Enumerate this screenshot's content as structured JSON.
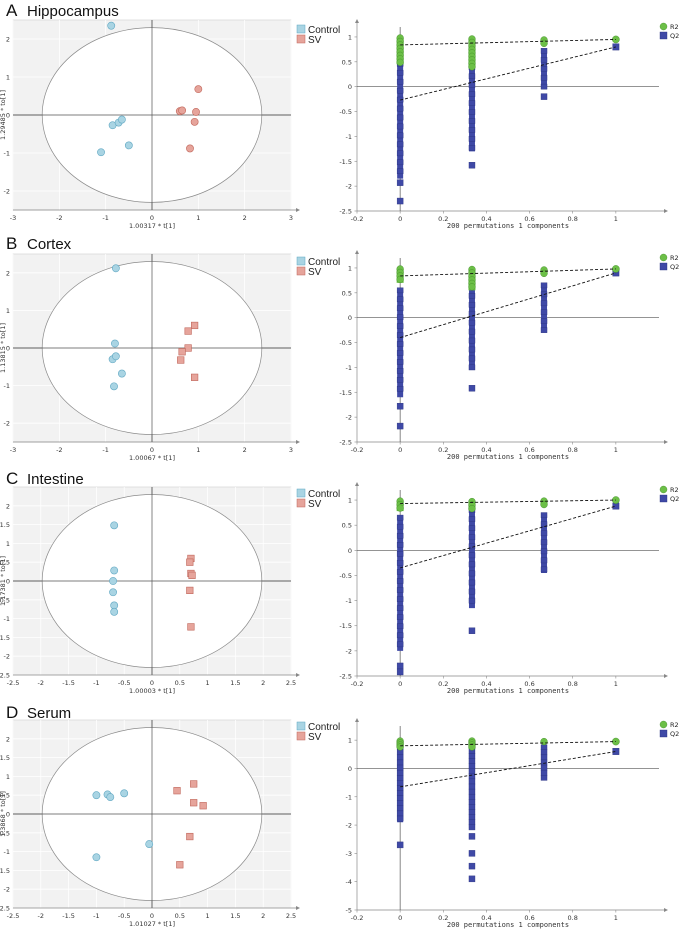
{
  "colors": {
    "control": "#a9d4e3",
    "control_edge": "#5fa7c2",
    "sv": "#e6a49b",
    "sv_edge": "#c0665a",
    "r2": "#6cbf47",
    "r2_edge": "#3e8b26",
    "q2": "#3f49a6",
    "q2_edge": "#2a3380",
    "plot_bg": "#f2f2f2"
  },
  "chart_data": [
    {
      "type": "scatter",
      "panel": "A",
      "title": "Hippocampus",
      "xlabel": "1.00317 * t[1]",
      "ylabel": "1.29485 * to[1]",
      "xlim": [
        -3,
        3
      ],
      "ylim": [
        -2.5,
        2.5
      ],
      "xticks": [
        "-3",
        "-2",
        "-1",
        "0",
        "1",
        "2",
        "3"
      ],
      "yticks": [
        "-2",
        "-1",
        "0",
        "1",
        "2"
      ],
      "legend": [
        "Control",
        "SV"
      ],
      "series": [
        {
          "name": "Control",
          "marker": "circle",
          "points": [
            [
              -0.88,
              2.35
            ],
            [
              -0.85,
              -0.27
            ],
            [
              -0.72,
              -0.2
            ],
            [
              -0.65,
              -0.12
            ],
            [
              -0.5,
              -0.8
            ],
            [
              -1.1,
              -0.98
            ]
          ]
        },
        {
          "name": "SV",
          "marker": "circle",
          "points": [
            [
              0.6,
              0.1
            ],
            [
              0.65,
              0.12
            ],
            [
              1.0,
              0.68
            ],
            [
              0.95,
              0.08
            ],
            [
              0.92,
              -0.18
            ],
            [
              0.82,
              -0.88
            ]
          ]
        }
      ]
    },
    {
      "type": "scatter",
      "panel": "A",
      "subtitle": "permutation",
      "xlabel": "200 permutations 1 components",
      "xlim": [
        -0.2,
        1.2
      ],
      "ylim": [
        -2.5,
        1.2
      ],
      "xticks": [
        "-0.2",
        "0",
        "0.2",
        "0.4",
        "0.6",
        "0.8",
        "1"
      ],
      "yticks": [
        "1",
        "0.5",
        "0",
        "-0.5",
        "-1",
        "-1.5",
        "-2",
        "-2.5"
      ],
      "legend": [
        "R2",
        "Q2"
      ],
      "r2": {
        "line": [
          [
            0,
            0.84
          ],
          [
            1,
            0.95
          ]
        ],
        "columns": [
          {
            "x": 0,
            "min": 0.45,
            "max": 0.98
          },
          {
            "x": 0.333,
            "min": 0.38,
            "max": 0.96
          },
          {
            "x": 0.667,
            "min": 0.85,
            "max": 0.94
          }
        ],
        "final": 0.95
      },
      "q2": {
        "line": [
          [
            0,
            -0.27
          ],
          [
            1,
            0.8
          ]
        ],
        "columns": [
          {
            "x": 0,
            "min": -1.85,
            "max": 0.82,
            "outliers": [
              -1.93,
              -2.3
            ]
          },
          {
            "x": 0.333,
            "min": -1.3,
            "max": 0.75,
            "outliers": [
              -1.58
            ]
          },
          {
            "x": 0.667,
            "min": -0.05,
            "max": 0.72,
            "outliers": [
              -0.2
            ]
          }
        ],
        "final": 0.8
      }
    },
    {
      "type": "scatter",
      "panel": "B",
      "title": "Cortex",
      "xlabel": "1.00067 * t[1]",
      "ylabel": "1.13815 * to[1]",
      "xlim": [
        -3,
        3
      ],
      "ylim": [
        -2.5,
        2.5
      ],
      "xticks": [
        "-3",
        "-2",
        "-1",
        "0",
        "1",
        "2",
        "3"
      ],
      "yticks": [
        "-2",
        "-1",
        "0",
        "1",
        "2"
      ],
      "legend": [
        "Control",
        "SV"
      ],
      "series": [
        {
          "name": "Control",
          "marker": "circle",
          "points": [
            [
              -0.78,
              2.12
            ],
            [
              -0.8,
              0.12
            ],
            [
              -0.85,
              -0.3
            ],
            [
              -0.78,
              -0.22
            ],
            [
              -0.65,
              -0.68
            ],
            [
              -0.82,
              -1.02
            ]
          ]
        },
        {
          "name": "SV",
          "marker": "square",
          "points": [
            [
              0.92,
              0.6
            ],
            [
              0.78,
              0.45
            ],
            [
              0.78,
              0.0
            ],
            [
              0.65,
              -0.1
            ],
            [
              0.62,
              -0.32
            ],
            [
              0.92,
              -0.78
            ]
          ]
        }
      ]
    },
    {
      "type": "scatter",
      "panel": "B",
      "subtitle": "permutation",
      "xlabel": "200 permutations 1 components",
      "xlim": [
        -0.2,
        1.2
      ],
      "ylim": [
        -2.5,
        1.2
      ],
      "xticks": [
        "-0.2",
        "0",
        "0.2",
        "0.4",
        "0.6",
        "0.8",
        "1"
      ],
      "yticks": [
        "1",
        "0.5",
        "0",
        "-0.5",
        "-1",
        "-1.5",
        "-2",
        "-2.5"
      ],
      "legend": [
        "R2",
        "Q2"
      ],
      "r2": {
        "line": [
          [
            0,
            0.84
          ],
          [
            1,
            0.98
          ]
        ],
        "columns": [
          {
            "x": 0,
            "min": 0.7,
            "max": 0.98
          },
          {
            "x": 0.333,
            "min": 0.55,
            "max": 0.97
          },
          {
            "x": 0.667,
            "min": 0.88,
            "max": 0.96
          }
        ],
        "final": 0.98
      },
      "q2": {
        "line": [
          [
            0,
            -0.4
          ],
          [
            1,
            0.9
          ]
        ],
        "columns": [
          {
            "x": 0,
            "min": -1.6,
            "max": 0.55,
            "outliers": [
              -1.78,
              -2.18
            ]
          },
          {
            "x": 0.333,
            "min": -1.05,
            "max": 0.8,
            "outliers": [
              -1.42
            ]
          },
          {
            "x": 0.667,
            "min": -0.25,
            "max": 0.65,
            "outliers": []
          }
        ],
        "final": 0.9
      }
    },
    {
      "type": "scatter",
      "panel": "C",
      "title": "Intestine",
      "xlabel": "1.00003 * t[1]",
      "ylabel": "1.17381 * to[1]",
      "xlim": [
        -2.5,
        2.5
      ],
      "ylim": [
        -2.5,
        2.5
      ],
      "xticks": [
        "-2.5",
        "-2",
        "-1.5",
        "-1",
        "-0.5",
        "0",
        "0.5",
        "1",
        "1.5",
        "2",
        "2.5"
      ],
      "yticks": [
        "-2.5",
        "-2",
        "-1.5",
        "-1",
        "-0.5",
        "0",
        "0.5",
        "1",
        "1.5",
        "2"
      ],
      "legend": [
        "Control",
        "SV"
      ],
      "series": [
        {
          "name": "Control",
          "marker": "circle",
          "points": [
            [
              -0.68,
              1.48
            ],
            [
              -0.68,
              0.28
            ],
            [
              -0.7,
              0.0
            ],
            [
              -0.7,
              -0.3
            ],
            [
              -0.68,
              -0.65
            ],
            [
              -0.68,
              -0.82
            ]
          ]
        },
        {
          "name": "SV",
          "marker": "square",
          "points": [
            [
              0.7,
              0.6
            ],
            [
              0.68,
              0.5
            ],
            [
              0.7,
              0.2
            ],
            [
              0.72,
              0.15
            ],
            [
              0.68,
              -0.25
            ],
            [
              0.7,
              -1.22
            ]
          ]
        }
      ]
    },
    {
      "type": "scatter",
      "panel": "C",
      "subtitle": "permutation",
      "xlabel": "200 permutations 1 components",
      "xlim": [
        -0.2,
        1.2
      ],
      "ylim": [
        -2.5,
        1.2
      ],
      "xticks": [
        "-0.2",
        "0",
        "0.2",
        "0.4",
        "0.6",
        "0.8",
        "1"
      ],
      "yticks": [
        "1",
        "0.5",
        "0",
        "-0.5",
        "-1",
        "-1.5",
        "-2",
        "-2.5"
      ],
      "legend": [
        "R2",
        "Q2"
      ],
      "r2": {
        "line": [
          [
            0,
            0.93
          ],
          [
            1,
            1.0
          ]
        ],
        "columns": [
          {
            "x": 0,
            "min": 0.78,
            "max": 0.98
          },
          {
            "x": 0.333,
            "min": 0.8,
            "max": 0.97
          },
          {
            "x": 0.667,
            "min": 0.9,
            "max": 0.98
          }
        ],
        "final": 1.0
      },
      "q2": {
        "line": [
          [
            0,
            -0.35
          ],
          [
            1,
            0.88
          ]
        ],
        "columns": [
          {
            "x": 0,
            "min": -2.0,
            "max": 0.65,
            "outliers": [
              -2.3,
              -2.42
            ]
          },
          {
            "x": 0.333,
            "min": -1.15,
            "max": 0.8,
            "outliers": [
              -1.6
            ]
          },
          {
            "x": 0.667,
            "min": -0.45,
            "max": 0.7,
            "outliers": []
          }
        ],
        "final": 0.88
      }
    },
    {
      "type": "scatter",
      "panel": "D",
      "title": "Serum",
      "xlabel": "1.01027 * t[1]",
      "ylabel": "1.3868 * to[1]",
      "xlim": [
        -2.5,
        2.5
      ],
      "ylim": [
        -2.5,
        2.5
      ],
      "xticks": [
        "-2.5",
        "-2",
        "-1.5",
        "-1",
        "-0.5",
        "0",
        "0.5",
        "1",
        "1.5",
        "2",
        "2.5"
      ],
      "yticks": [
        "-2.5",
        "-2",
        "-1.5",
        "-1",
        "-0.5",
        "0",
        "0.5",
        "1",
        "1.5",
        "2"
      ],
      "legend": [
        "Control",
        "SV"
      ],
      "series": [
        {
          "name": "Control",
          "marker": "circle",
          "points": [
            [
              -1.0,
              0.5
            ],
            [
              -0.8,
              0.52
            ],
            [
              -0.75,
              0.45
            ],
            [
              -0.5,
              0.55
            ],
            [
              -1.0,
              -1.15
            ],
            [
              -0.05,
              -0.8
            ]
          ]
        },
        {
          "name": "SV",
          "marker": "square",
          "points": [
            [
              0.45,
              0.62
            ],
            [
              0.75,
              0.8
            ],
            [
              0.92,
              0.22
            ],
            [
              0.75,
              0.3
            ],
            [
              0.68,
              -0.6
            ],
            [
              0.5,
              -1.35
            ]
          ]
        }
      ]
    },
    {
      "type": "scatter",
      "panel": "D",
      "subtitle": "permutation",
      "xlabel": "200 permutations 1 components",
      "xlim": [
        -0.2,
        1.2
      ],
      "ylim": [
        -5,
        1.5
      ],
      "xticks": [
        "-0.2",
        "0",
        "0.2",
        "0.4",
        "0.6",
        "0.8",
        "1"
      ],
      "yticks": [
        "1",
        "0",
        "-1",
        "-2",
        "-3",
        "-4",
        "-5"
      ],
      "legend": [
        "R2",
        "Q2"
      ],
      "r2": {
        "line": [
          [
            0,
            0.8
          ],
          [
            1,
            0.95
          ]
        ],
        "columns": [
          {
            "x": 0,
            "min": 0.75,
            "max": 0.97
          },
          {
            "x": 0.333,
            "min": 0.7,
            "max": 0.97
          },
          {
            "x": 0.667,
            "min": 0.88,
            "max": 0.95
          }
        ],
        "final": 0.95
      },
      "q2": {
        "line": [
          [
            0,
            -0.65
          ],
          [
            1,
            0.6
          ]
        ],
        "columns": [
          {
            "x": 0,
            "min": -1.9,
            "max": 0.75,
            "outliers": [
              -2.7
            ]
          },
          {
            "x": 0.333,
            "min": -2.1,
            "max": 0.8,
            "outliers": [
              -2.4,
              -3.0,
              -3.45,
              -3.9
            ]
          },
          {
            "x": 0.667,
            "min": -0.35,
            "max": 0.75,
            "outliers": []
          }
        ],
        "final": 0.6
      }
    }
  ]
}
